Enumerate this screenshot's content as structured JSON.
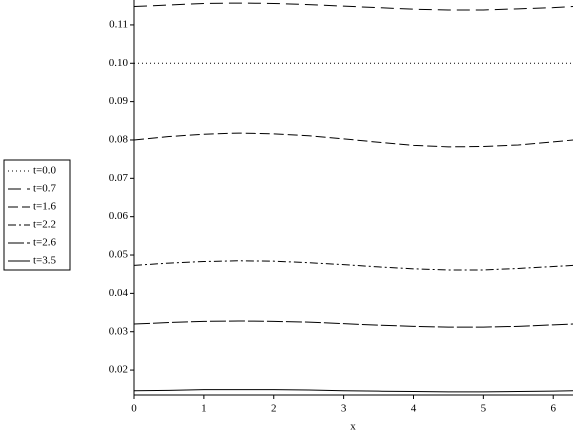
{
  "chart_data": {
    "type": "line",
    "x_label": "x",
    "x": [
      0,
      0.5,
      1,
      1.5,
      2,
      2.5,
      3,
      3.5,
      4,
      4.5,
      5,
      5.5,
      6,
      6.283
    ],
    "series": [
      {
        "name": "t=0.0",
        "color": "#000000",
        "dash": "1,3",
        "values": [
          0.1,
          0.1,
          0.1,
          0.1,
          0.1,
          0.1,
          0.1,
          0.1,
          0.1,
          0.1,
          0.1,
          0.1,
          0.1,
          0.1
        ]
      },
      {
        "name": "t=0.7",
        "color": "#000000",
        "dash": "13,6",
        "values": [
          0.1148,
          0.1152,
          0.1156,
          0.1157,
          0.1156,
          0.1153,
          0.1149,
          0.1145,
          0.1141,
          0.1139,
          0.1139,
          0.1142,
          0.1145,
          0.1148
        ]
      },
      {
        "name": "t=1.6",
        "color": "#000000",
        "dash": "10,4",
        "values": [
          0.08,
          0.0809,
          0.0815,
          0.0818,
          0.0816,
          0.0811,
          0.0803,
          0.0794,
          0.0786,
          0.0782,
          0.0783,
          0.0787,
          0.0795,
          0.08
        ]
      },
      {
        "name": "t=2.2",
        "color": "#000000",
        "dash": "8,3,2,3",
        "values": [
          0.0473,
          0.0479,
          0.0483,
          0.0485,
          0.0484,
          0.048,
          0.0475,
          0.0469,
          0.0464,
          0.0461,
          0.0461,
          0.0465,
          0.047,
          0.0473
        ]
      },
      {
        "name": "t=2.6",
        "color": "#000000",
        "dash": "16,3",
        "values": [
          0.032,
          0.0324,
          0.0327,
          0.0328,
          0.0327,
          0.0325,
          0.0321,
          0.0317,
          0.0314,
          0.0312,
          0.0312,
          0.0314,
          0.0318,
          0.032
        ]
      },
      {
        "name": "t=3.5",
        "color": "#000000",
        "dash": "none",
        "values": [
          0.0146,
          0.0147,
          0.0149,
          0.0149,
          0.0149,
          0.0148,
          0.0146,
          0.0145,
          0.0144,
          0.0143,
          0.0143,
          0.0144,
          0.0145,
          0.0146
        ]
      }
    ],
    "xlim": [
      0,
      6.283
    ],
    "ylim": [
      0.0135,
      0.1165
    ],
    "xticks": [
      0,
      1,
      2,
      3,
      4,
      5,
      6
    ],
    "yticks": [
      0.02,
      0.03,
      0.04,
      0.05,
      0.06,
      0.07,
      0.08,
      0.09,
      {
        "value": 0.1,
        "label": "0.10"
      },
      0.11
    ],
    "legend": "left"
  }
}
